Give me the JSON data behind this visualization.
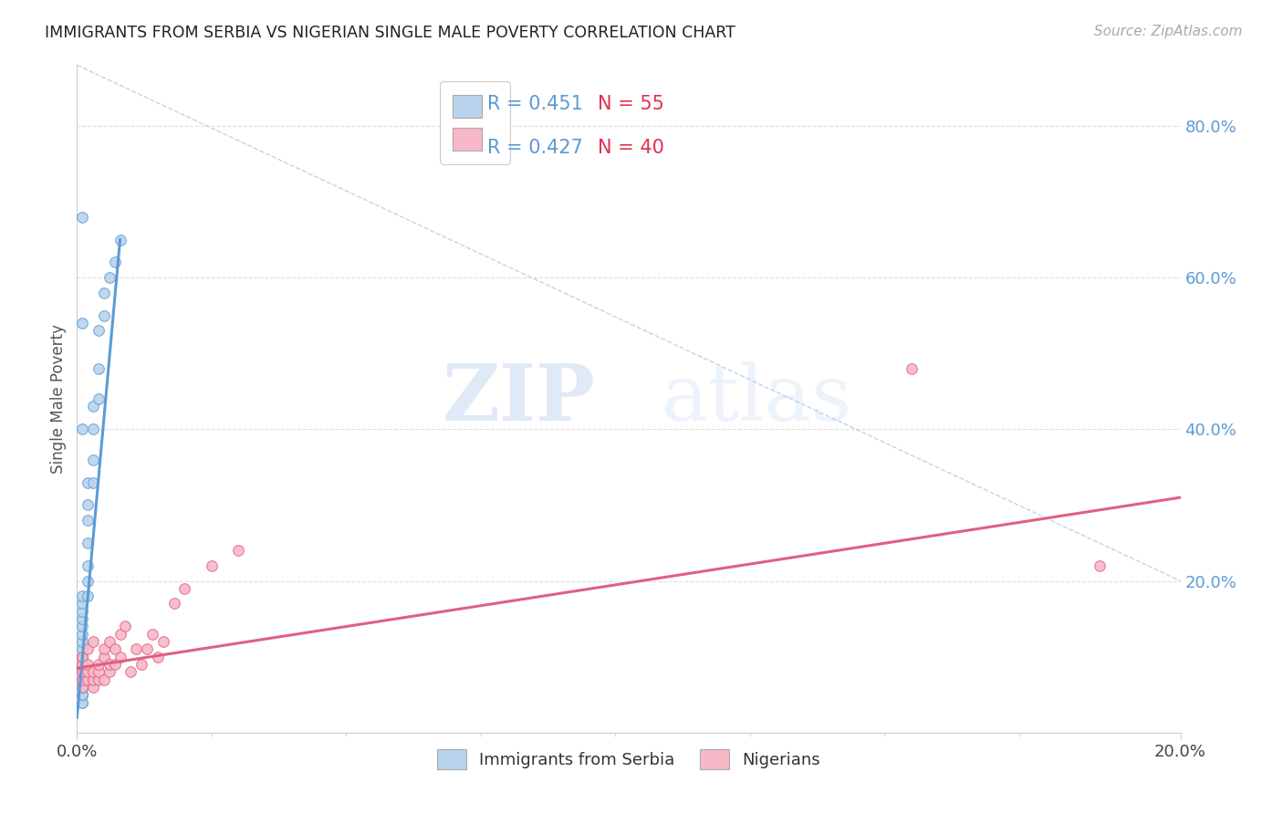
{
  "title": "IMMIGRANTS FROM SERBIA VS NIGERIAN SINGLE MALE POVERTY CORRELATION CHART",
  "source": "Source: ZipAtlas.com",
  "ylabel": "Single Male Poverty",
  "right_yticks": [
    "80.0%",
    "60.0%",
    "40.0%",
    "20.0%"
  ],
  "right_ytick_vals": [
    0.8,
    0.6,
    0.4,
    0.2
  ],
  "legend_serbia_r": "0.451",
  "legend_serbia_n": "55",
  "legend_nigerian_r": "0.427",
  "legend_nigerian_n": "40",
  "serbia_color": "#b8d4ed",
  "nigerian_color": "#f7b8c8",
  "serbia_line_color": "#5b9bd5",
  "nigerian_line_color": "#e06080",
  "serbia_scatter_x": [
    0.001,
    0.001,
    0.001,
    0.001,
    0.001,
    0.001,
    0.001,
    0.001,
    0.001,
    0.001,
    0.001,
    0.001,
    0.001,
    0.001,
    0.001,
    0.001,
    0.001,
    0.001,
    0.001,
    0.001,
    0.001,
    0.001,
    0.001,
    0.001,
    0.002,
    0.002,
    0.002,
    0.002,
    0.002,
    0.002,
    0.002,
    0.003,
    0.003,
    0.003,
    0.003,
    0.004,
    0.004,
    0.004,
    0.005,
    0.005,
    0.006,
    0.007,
    0.008,
    0.001,
    0.001,
    0.001,
    0.001,
    0.001,
    0.001,
    0.001,
    0.001,
    0.001,
    0.001,
    0.001,
    0.001
  ],
  "serbia_scatter_y": [
    0.05,
    0.05,
    0.05,
    0.06,
    0.06,
    0.06,
    0.07,
    0.07,
    0.07,
    0.08,
    0.08,
    0.09,
    0.09,
    0.1,
    0.1,
    0.1,
    0.11,
    0.12,
    0.13,
    0.14,
    0.15,
    0.16,
    0.17,
    0.18,
    0.18,
    0.2,
    0.22,
    0.25,
    0.28,
    0.3,
    0.33,
    0.33,
    0.36,
    0.4,
    0.43,
    0.44,
    0.48,
    0.53,
    0.55,
    0.58,
    0.6,
    0.62,
    0.65,
    0.04,
    0.04,
    0.05,
    0.05,
    0.06,
    0.06,
    0.07,
    0.07,
    0.08,
    0.68,
    0.54,
    0.4
  ],
  "nigerian_scatter_x": [
    0.001,
    0.001,
    0.001,
    0.001,
    0.001,
    0.002,
    0.002,
    0.002,
    0.002,
    0.003,
    0.003,
    0.003,
    0.003,
    0.004,
    0.004,
    0.004,
    0.005,
    0.005,
    0.005,
    0.006,
    0.006,
    0.006,
    0.007,
    0.007,
    0.008,
    0.008,
    0.009,
    0.01,
    0.011,
    0.012,
    0.013,
    0.014,
    0.015,
    0.016,
    0.018,
    0.02,
    0.025,
    0.03,
    0.155,
    0.19
  ],
  "nigerian_scatter_y": [
    0.06,
    0.07,
    0.08,
    0.09,
    0.1,
    0.07,
    0.08,
    0.09,
    0.11,
    0.06,
    0.07,
    0.08,
    0.12,
    0.07,
    0.08,
    0.09,
    0.07,
    0.1,
    0.11,
    0.08,
    0.09,
    0.12,
    0.09,
    0.11,
    0.1,
    0.13,
    0.14,
    0.08,
    0.11,
    0.09,
    0.11,
    0.13,
    0.1,
    0.12,
    0.17,
    0.19,
    0.22,
    0.24,
    0.48,
    0.22
  ],
  "watermark_zip": "ZIP",
  "watermark_atlas": "atlas",
  "xlim": [
    0.0,
    0.205
  ],
  "ylim": [
    0.0,
    0.88
  ],
  "background_color": "#ffffff",
  "grid_color": "#dddddd",
  "ref_line_color": "#b0c8e8"
}
